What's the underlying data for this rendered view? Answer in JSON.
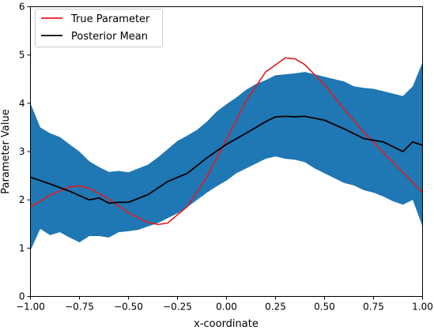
{
  "chart_data": {
    "type": "line",
    "xlabel": "x-coordinate",
    "ylabel": "Parameter Value",
    "xlim": [
      -1.0,
      1.0
    ],
    "ylim": [
      0,
      6
    ],
    "x_ticks": [
      -1.0,
      -0.75,
      -0.5,
      -0.25,
      0.0,
      0.25,
      0.5,
      0.75,
      1.0
    ],
    "x_tick_labels": [
      "−1.00",
      "−0.75",
      "−0.50",
      "−0.25",
      "0.00",
      "0.25",
      "0.50",
      "0.75",
      "1.00"
    ],
    "y_ticks": [
      0,
      1,
      2,
      3,
      4,
      5,
      6
    ],
    "y_tick_labels": [
      "0",
      "1",
      "2",
      "3",
      "4",
      "5",
      "6"
    ],
    "grid": false,
    "legend_position": "top-left",
    "series": [
      {
        "name": "True Parameter",
        "color": "#e41a1c",
        "x": [
          -1.0,
          -0.9,
          -0.8,
          -0.75,
          -0.7,
          -0.6,
          -0.5,
          -0.4,
          -0.35,
          -0.3,
          -0.2,
          -0.1,
          0.0,
          0.1,
          0.2,
          0.3,
          0.35,
          0.4,
          0.5,
          0.6,
          0.7,
          0.8,
          0.9,
          1.0
        ],
        "values": [
          1.85,
          2.1,
          2.27,
          2.29,
          2.24,
          2.02,
          1.73,
          1.53,
          1.49,
          1.52,
          1.86,
          2.48,
          3.25,
          4.05,
          4.65,
          4.94,
          4.92,
          4.8,
          4.38,
          3.88,
          3.4,
          2.98,
          2.57,
          2.15
        ]
      },
      {
        "name": "Posterior Mean",
        "color": "#000000",
        "x": [
          -1.0,
          -0.9,
          -0.8,
          -0.7,
          -0.65,
          -0.6,
          -0.55,
          -0.5,
          -0.4,
          -0.3,
          -0.2,
          -0.1,
          0.0,
          0.1,
          0.15,
          0.2,
          0.25,
          0.3,
          0.35,
          0.4,
          0.5,
          0.6,
          0.7,
          0.8,
          0.9,
          0.95,
          1.0
        ],
        "values": [
          2.47,
          2.33,
          2.18,
          2.0,
          2.04,
          1.93,
          1.95,
          1.95,
          2.11,
          2.38,
          2.55,
          2.87,
          3.15,
          3.38,
          3.5,
          3.62,
          3.72,
          3.73,
          3.72,
          3.73,
          3.65,
          3.47,
          3.27,
          3.2,
          3.0,
          3.2,
          3.13
        ]
      }
    ],
    "band": {
      "color": "#1f77b4",
      "x": [
        -1.0,
        -0.95,
        -0.9,
        -0.85,
        -0.8,
        -0.75,
        -0.7,
        -0.65,
        -0.6,
        -0.55,
        -0.5,
        -0.45,
        -0.4,
        -0.35,
        -0.3,
        -0.25,
        -0.2,
        -0.15,
        -0.1,
        -0.05,
        0.0,
        0.05,
        0.1,
        0.15,
        0.2,
        0.25,
        0.3,
        0.35,
        0.4,
        0.45,
        0.5,
        0.55,
        0.6,
        0.65,
        0.7,
        0.75,
        0.8,
        0.85,
        0.9,
        0.95,
        1.0
      ],
      "upper": [
        4.0,
        3.5,
        3.38,
        3.3,
        3.15,
        3.0,
        2.8,
        2.68,
        2.58,
        2.6,
        2.57,
        2.65,
        2.73,
        2.88,
        3.05,
        3.22,
        3.33,
        3.45,
        3.62,
        3.83,
        3.98,
        4.12,
        4.28,
        4.4,
        4.48,
        4.58,
        4.6,
        4.62,
        4.65,
        4.6,
        4.55,
        4.5,
        4.45,
        4.35,
        4.32,
        4.3,
        4.25,
        4.2,
        4.15,
        4.35,
        4.85
      ],
      "lower": [
        0.95,
        1.4,
        1.27,
        1.33,
        1.22,
        1.12,
        1.25,
        1.25,
        1.22,
        1.33,
        1.35,
        1.38,
        1.45,
        1.52,
        1.62,
        1.72,
        1.85,
        2.0,
        2.15,
        2.28,
        2.4,
        2.55,
        2.65,
        2.75,
        2.85,
        2.9,
        2.85,
        2.83,
        2.78,
        2.65,
        2.55,
        2.45,
        2.35,
        2.3,
        2.2,
        2.15,
        2.07,
        1.97,
        1.9,
        2.0,
        1.45
      ]
    }
  }
}
